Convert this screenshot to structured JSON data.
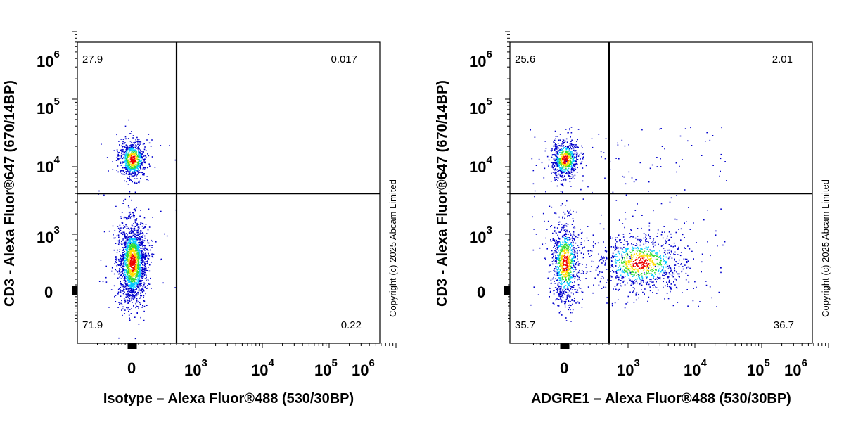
{
  "chart_data": [
    {
      "type": "scatter",
      "subtype": "flow-cytometry-density-dot-plot",
      "xlabel": "Isotype – Alexa Fluor®488 (530/30BP)",
      "ylabel": "CD3 - Alexa Fluor®647 (670/14BP)",
      "x_scale": "biexponential",
      "y_scale": "biexponential",
      "x_ticks": [
        {
          "base": "0",
          "exp": ""
        },
        {
          "base": "10",
          "exp": "3"
        },
        {
          "base": "10",
          "exp": "4"
        },
        {
          "base": "10",
          "exp": "5"
        },
        {
          "base": "10",
          "exp": "6"
        }
      ],
      "y_ticks": [
        {
          "base": "0",
          "exp": ""
        },
        {
          "base": "10",
          "exp": "3"
        },
        {
          "base": "10",
          "exp": "4"
        },
        {
          "base": "10",
          "exp": "5"
        },
        {
          "base": "10",
          "exp": "6"
        }
      ],
      "gate": {
        "x": 700,
        "y": 4000
      },
      "quadrants": {
        "upper_left": "27.9",
        "upper_right": "0.017",
        "lower_left": "71.9",
        "lower_right": "0.22"
      },
      "populations": [
        {
          "name_hint": "CD3 positive",
          "x_center": 0,
          "y_center": 13000,
          "percent": 27.9
        },
        {
          "name_hint": "CD3 negative",
          "x_center": 0,
          "y_center": 500,
          "percent": 71.9
        }
      ],
      "copyright": "Copyright (c) 2025 Abcam Limited"
    },
    {
      "type": "scatter",
      "subtype": "flow-cytometry-density-dot-plot",
      "xlabel": "ADGRE1 – Alexa Fluor®488 (530/30BP)",
      "ylabel": "CD3 - Alexa Fluor®647 (670/14BP)",
      "x_scale": "biexponential",
      "y_scale": "biexponential",
      "x_ticks": [
        {
          "base": "0",
          "exp": ""
        },
        {
          "base": "10",
          "exp": "3"
        },
        {
          "base": "10",
          "exp": "4"
        },
        {
          "base": "10",
          "exp": "5"
        },
        {
          "base": "10",
          "exp": "6"
        }
      ],
      "y_ticks": [
        {
          "base": "0",
          "exp": ""
        },
        {
          "base": "10",
          "exp": "3"
        },
        {
          "base": "10",
          "exp": "4"
        },
        {
          "base": "10",
          "exp": "5"
        },
        {
          "base": "10",
          "exp": "6"
        }
      ],
      "gate": {
        "x": 700,
        "y": 4000
      },
      "quadrants": {
        "upper_left": "25.6",
        "upper_right": "2.01",
        "lower_left": "35.7",
        "lower_right": "36.7"
      },
      "populations": [
        {
          "name_hint": "CD3 positive",
          "x_center": 0,
          "y_center": 13000,
          "percent": 25.6
        },
        {
          "name_hint": "CD3 negative ADGRE1 negative",
          "x_center": 0,
          "y_center": 500,
          "percent": 35.7
        },
        {
          "name_hint": "ADGRE1 positive",
          "x_center": 1500,
          "y_center": 500,
          "percent": 36.7
        }
      ],
      "copyright": "Copyright (c) 2025 Abcam Limited"
    }
  ],
  "colors": {
    "density_low": "#0000cc",
    "density_mid_low": "#00c8ff",
    "density_mid": "#33dd33",
    "density_mid_high": "#ffdd00",
    "density_high": "#ee0000",
    "gate_line": "#000000",
    "frame": "#000000"
  }
}
